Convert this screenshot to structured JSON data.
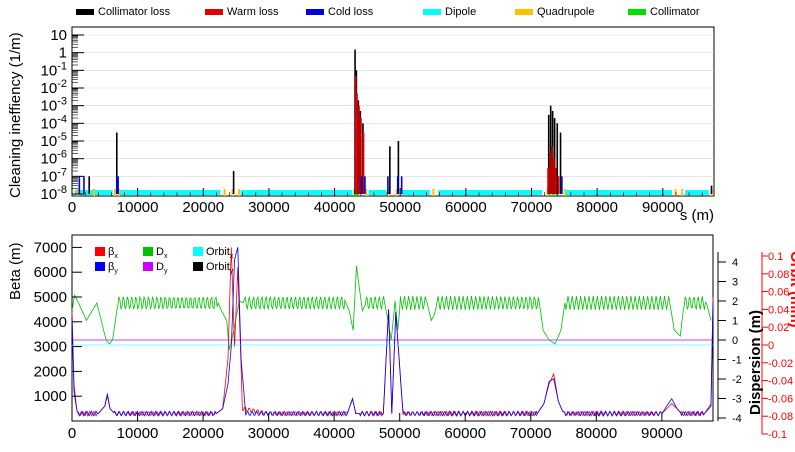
{
  "chart_data": [
    {
      "type": "bar",
      "title": "",
      "xlabel": "s (m)",
      "ylabel": "Cleaning ineffiency (1/m)",
      "xlim": [
        0,
        97800
      ],
      "ylim": [
        1e-08,
        10
      ],
      "y_scale": "log",
      "y_tick_labels": [
        "10",
        "1",
        "10-1",
        "10-2",
        "10-3",
        "10-4",
        "10-5",
        "10-6",
        "10-7",
        "10-8"
      ],
      "x_ticks": [
        0,
        10000,
        20000,
        30000,
        40000,
        50000,
        60000,
        70000,
        80000,
        90000
      ],
      "x_tick_labels": [
        "0",
        "10000",
        "20000",
        "30000",
        "40000",
        "50000",
        "60000",
        "70000",
        "80000",
        "90000"
      ],
      "legend": [
        {
          "name": "Collimator loss",
          "color": "#000000"
        },
        {
          "name": "Warm loss",
          "color": "#e00000"
        },
        {
          "name": "Cold loss",
          "color": "#0000e0"
        },
        {
          "name": "Dipole",
          "color": "#00ffff"
        },
        {
          "name": "Quadrupole",
          "color": "#ffc000"
        },
        {
          "name": "Collimator",
          "color": "#00e000"
        }
      ],
      "series": [
        {
          "name": "Collimator loss",
          "color": "#000000",
          "x": [
            2500,
            6700,
            24500,
            43000,
            43200,
            43500,
            43800,
            44200,
            48300,
            49600,
            72500,
            72800,
            73100,
            73400,
            73800,
            74300,
            97300
          ],
          "values": [
            1e-07,
            3e-05,
            2e-07,
            1.5,
            0.1,
            0.002,
            0.0005,
            0.0001,
            5e-06,
            1e-05,
            0.0003,
            0.001,
            0.0005,
            0.0002,
            0.0001,
            3e-05,
            3e-08
          ]
        },
        {
          "name": "Warm loss",
          "color": "#e00000",
          "x": [
            43100,
            43300,
            43600,
            43900,
            44300,
            72400,
            72700,
            73000,
            73300,
            73600,
            74000
          ],
          "values": [
            0.05,
            0.005,
            0.001,
            0.0002,
            3e-05,
            3e-07,
            2e-06,
            5e-06,
            1e-06,
            3e-07,
            1e-07
          ]
        },
        {
          "name": "Cold loss",
          "color": "#0000e0",
          "x": [
            1000,
            1700,
            6700,
            6900,
            44000,
            44500,
            48000,
            49500,
            50100,
            74500
          ],
          "values": [
            1e-07,
            1e-07,
            1e-07,
            1e-07,
            1e-07,
            1e-07,
            1e-07,
            1e-07,
            1e-07,
            1e-07
          ]
        }
      ],
      "element_bands": [
        {
          "type": "Dipole",
          "color": "#00ffff",
          "ranges": [
            [
              400,
              6200
            ],
            [
              7200,
              22600
            ],
            [
              25700,
              42700
            ],
            [
              45200,
              47900
            ],
            [
              50300,
              54500
            ],
            [
              55800,
              71600
            ],
            [
              75200,
              91400
            ],
            [
              93400,
              97000
            ]
          ]
        },
        {
          "type": "Quadrupole",
          "color": "#ffc000",
          "x": [
            700,
            3200,
            6400,
            7000,
            23100,
            24300,
            25300,
            43200,
            44700,
            48100,
            49300,
            54900,
            72300,
            74900,
            91800,
            92800,
            97300
          ]
        },
        {
          "type": "Collimator",
          "color": "#00e000",
          "x": [
            42900,
            43100,
            43400,
            72600,
            73200,
            73700
          ]
        }
      ]
    },
    {
      "type": "line",
      "title": "",
      "xlabel": "",
      "ylabel": "Beta (m)",
      "y2label": "Dispersion (m)",
      "y3label": "Orbit (mm)",
      "xlim": [
        0,
        97800
      ],
      "ylim": [
        0,
        7500
      ],
      "y2lim": [
        -4.3,
        4.7
      ],
      "y3lim": [
        -0.1,
        0.115
      ],
      "x_ticks": [
        0,
        10000,
        20000,
        30000,
        40000,
        50000,
        60000,
        70000,
        80000,
        90000
      ],
      "x_tick_labels": [
        "0",
        "10000",
        "20000",
        "30000",
        "40000",
        "50000",
        "60000",
        "70000",
        "80000",
        "90000"
      ],
      "y_ticks": [
        1000,
        2000,
        3000,
        4000,
        5000,
        6000,
        7000
      ],
      "y_tick_labels": [
        "1000",
        "2000",
        "3000",
        "4000",
        "5000",
        "6000",
        "7000"
      ],
      "y2_ticks": [
        -4,
        -3,
        -2,
        -1,
        0,
        1,
        2,
        3,
        4
      ],
      "y2_tick_labels": [
        "-4",
        "-3",
        "-2",
        "-1",
        "0",
        "1",
        "2",
        "3",
        "4"
      ],
      "y3_ticks": [
        -0.1,
        -0.08,
        -0.06,
        -0.04,
        -0.02,
        0,
        0.02,
        0.04,
        0.06,
        0.08,
        0.1
      ],
      "y3_tick_labels": [
        "-0.1",
        "-0.08",
        "-0.06",
        "-0.04",
        "-0.02",
        "0",
        "0.02",
        "0.04",
        "0.06",
        "0.08",
        "0.1"
      ],
      "legend": [
        {
          "name": "βx",
          "color": "#ff0000"
        },
        {
          "name": "βy",
          "color": "#0000ff"
        },
        {
          "name": "Dx",
          "color": "#00c000"
        },
        {
          "name": "Dy",
          "color": "#d000ff"
        },
        {
          "name": "Orbitx",
          "color": "#00ffff"
        },
        {
          "name": "Orbity",
          "color": "#000000"
        }
      ],
      "beta_x": {
        "x": [
          0,
          300,
          800,
          4000,
          5000,
          5400,
          5800,
          6500,
          10000,
          22000,
          23000,
          23800,
          24300,
          24800,
          25300,
          26000,
          30000,
          42000,
          42800,
          43300,
          44000,
          47500,
          48300,
          48800,
          49400,
          50500,
          60000,
          71000,
          72000,
          72800,
          73500,
          74200,
          75000,
          80000,
          90000,
          91500,
          92300,
          93000,
          96500,
          97500,
          97800
        ],
        "values": [
          4400,
          1500,
          300,
          300,
          600,
          1000,
          500,
          300,
          300,
          300,
          500,
          2500,
          7000,
          3000,
          6200,
          500,
          300,
          300,
          900,
          300,
          300,
          300,
          4500,
          300,
          4400,
          300,
          300,
          300,
          700,
          1500,
          1900,
          800,
          300,
          300,
          300,
          700,
          500,
          300,
          300,
          700,
          5000
        ]
      },
      "beta_y": {
        "x": [
          0,
          300,
          800,
          4000,
          5000,
          5400,
          5800,
          6500,
          10000,
          22000,
          23000,
          23800,
          24300,
          24800,
          25300,
          25800,
          26500,
          30000,
          42000,
          42800,
          43300,
          44000,
          47500,
          48300,
          48800,
          49400,
          50500,
          60000,
          71000,
          72000,
          72800,
          73500,
          74200,
          75000,
          80000,
          90000,
          91500,
          92300,
          93000,
          96500,
          97500,
          97800
        ],
        "values": [
          4200,
          1200,
          300,
          300,
          600,
          1100,
          500,
          300,
          300,
          300,
          500,
          1500,
          3000,
          6500,
          7000,
          2500,
          300,
          300,
          300,
          900,
          300,
          300,
          300,
          4500,
          300,
          4400,
          300,
          300,
          300,
          700,
          1600,
          1700,
          800,
          300,
          300,
          300,
          900,
          500,
          300,
          300,
          600,
          4800
        ]
      },
      "dispersion_x": {
        "x": [
          0,
          400,
          1000,
          2200,
          3800,
          5200,
          5700,
          6200,
          7000,
          22300,
          22800,
          23600,
          24000,
          24700,
          25500,
          26300,
          41800,
          42300,
          42900,
          43400,
          44300,
          44900,
          47700,
          48100,
          48700,
          49300,
          49700,
          50100,
          54200,
          54800,
          55300,
          55700,
          71300,
          71900,
          72800,
          73700,
          74600,
          75200,
          91200,
          91900,
          92800,
          93400,
          96800,
          97500
        ],
        "values": [
          1.5,
          2.3,
          1.9,
          1.0,
          1.9,
          0.0,
          -0.2,
          0.0,
          1.9,
          1.9,
          1.5,
          1.0,
          -0.5,
          0.5,
          2.0,
          1.9,
          1.9,
          1.5,
          0.5,
          3.8,
          1.5,
          1.9,
          1.9,
          1.2,
          0.0,
          2.0,
          0.5,
          1.9,
          1.9,
          1.0,
          1.3,
          1.9,
          1.9,
          0.5,
          0.0,
          -0.2,
          0.5,
          1.9,
          1.9,
          0.5,
          0.2,
          1.9,
          1.9,
          1.0
        ]
      },
      "dispersion_y": {
        "x": [
          0,
          97800
        ],
        "values": [
          0,
          0
        ]
      }
    }
  ]
}
